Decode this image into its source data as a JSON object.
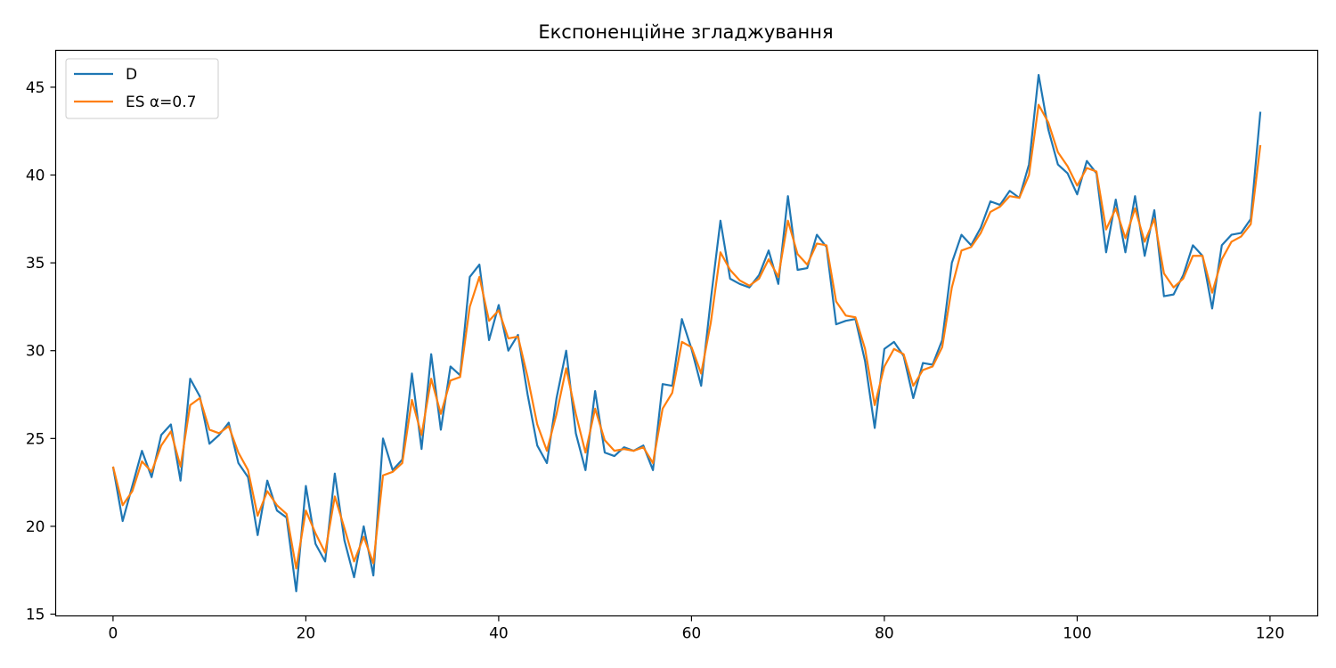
{
  "chart_data": {
    "type": "line",
    "title": "Експоненційне згладжування",
    "xlabel": "",
    "ylabel": "",
    "xlim": [
      -5.95,
      124.95
    ],
    "ylim": [
      14.9,
      47.1
    ],
    "xticks": [
      0,
      20,
      40,
      60,
      80,
      100,
      120
    ],
    "yticks": [
      15,
      20,
      25,
      30,
      35,
      40,
      45
    ],
    "grid": false,
    "legend_position": "top-left",
    "series": [
      {
        "name": "D",
        "color": "#1f77b4",
        "values": [
          23.4,
          20.3,
          22.3,
          24.3,
          22.8,
          25.2,
          25.8,
          22.6,
          28.4,
          27.4,
          24.7,
          25.2,
          25.9,
          23.6,
          22.8,
          19.5,
          22.6,
          20.9,
          20.5,
          16.3,
          22.3,
          19.0,
          18.0,
          23.0,
          19.2,
          17.1,
          20.0,
          17.2,
          25.0,
          23.2,
          23.8,
          28.7,
          24.4,
          29.8,
          25.5,
          29.1,
          28.6,
          34.2,
          34.9,
          30.6,
          32.6,
          30.0,
          30.9,
          27.5,
          24.6,
          23.6,
          27.3,
          30.0,
          25.3,
          23.2,
          27.7,
          24.2,
          24.0,
          24.5,
          24.3,
          24.6,
          23.2,
          28.1,
          28.0,
          31.8,
          30.1,
          28.0,
          32.9,
          37.4,
          34.1,
          33.8,
          33.6,
          34.3,
          35.7,
          33.8,
          38.8,
          34.6,
          34.7,
          36.6,
          35.9,
          31.5,
          31.7,
          31.8,
          29.4,
          25.6,
          30.1,
          30.5,
          29.7,
          27.3,
          29.3,
          29.2,
          30.6,
          35.0,
          36.6,
          36.0,
          37.0,
          38.5,
          38.3,
          39.1,
          38.7,
          40.6,
          45.7,
          42.6,
          40.6,
          40.1,
          38.9,
          40.8,
          40.1,
          35.6,
          38.6,
          35.6,
          38.8,
          35.4,
          38.0,
          33.1,
          33.2,
          34.3,
          36.0,
          35.4,
          32.4,
          36.0,
          36.6,
          36.7,
          37.5,
          43.6
        ]
      },
      {
        "name": "ES α=0.7",
        "color": "#ff7f0e",
        "values": [
          23.4,
          21.2,
          22.0,
          23.7,
          23.1,
          24.6,
          25.4,
          23.4,
          26.9,
          27.3,
          25.5,
          25.3,
          25.7,
          24.2,
          23.2,
          20.6,
          22.0,
          21.2,
          20.7,
          17.6,
          20.9,
          19.6,
          18.5,
          21.7,
          19.9,
          18.0,
          19.4,
          17.9,
          22.9,
          23.1,
          23.6,
          27.2,
          25.2,
          28.4,
          26.4,
          28.3,
          28.5,
          32.5,
          34.2,
          31.7,
          32.3,
          30.7,
          30.8,
          28.5,
          25.8,
          24.3,
          26.4,
          29.0,
          26.4,
          24.2,
          26.7,
          24.9,
          24.3,
          24.4,
          24.3,
          24.5,
          23.6,
          26.7,
          27.6,
          30.5,
          30.2,
          28.7,
          31.6,
          35.6,
          34.6,
          34.0,
          33.7,
          34.1,
          35.2,
          34.2,
          37.4,
          35.5,
          34.9,
          36.1,
          36.0,
          32.8,
          32.0,
          31.9,
          30.1,
          26.9,
          29.1,
          30.1,
          29.8,
          28.0,
          28.9,
          29.1,
          30.2,
          33.6,
          35.7,
          35.9,
          36.7,
          37.9,
          38.2,
          38.8,
          38.7,
          40.0,
          44.0,
          43.0,
          41.3,
          40.5,
          39.4,
          40.4,
          40.2,
          36.9,
          38.1,
          36.4,
          38.1,
          36.2,
          37.5,
          34.4,
          33.6,
          34.1,
          35.4,
          35.4,
          33.3,
          35.2,
          36.2,
          36.5,
          37.2,
          41.7
        ]
      }
    ]
  }
}
